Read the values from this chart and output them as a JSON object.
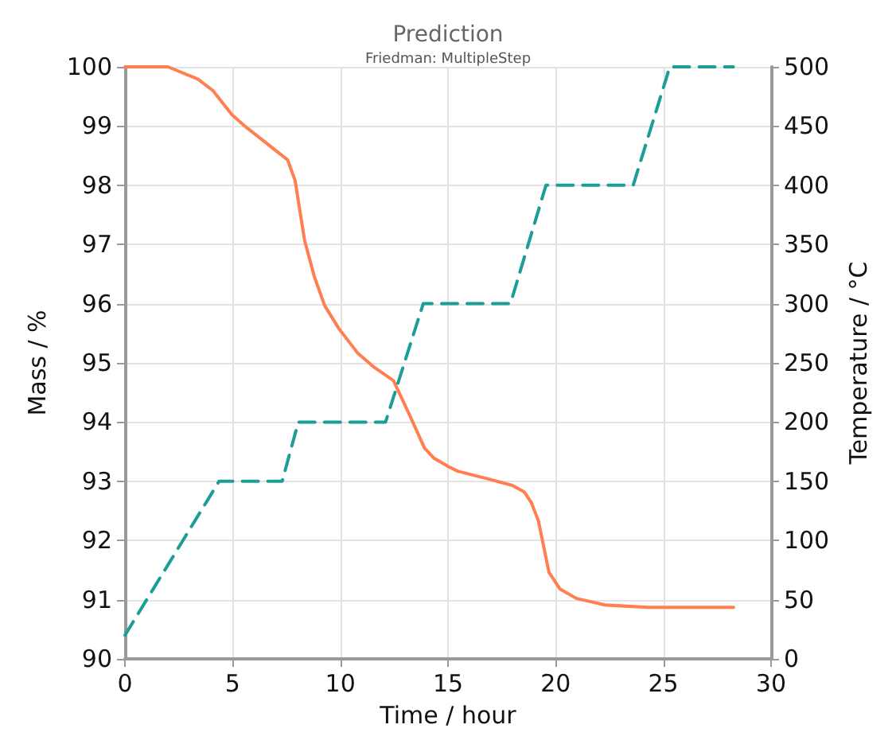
{
  "chart_data": {
    "type": "line",
    "title": "Prediction",
    "subtitle": "Friedman: MultipleStep",
    "xlabel": "Time / hour",
    "ylabel": "Mass / %",
    "y2label": "Temperature / °C",
    "xlim": [
      0,
      30
    ],
    "xticks": [
      0,
      5,
      10,
      15,
      20,
      25,
      30
    ],
    "ylim": [
      90,
      100
    ],
    "yticks": [
      90,
      91,
      92,
      93,
      94,
      95,
      96,
      97,
      98,
      99,
      100
    ],
    "y2lim": [
      0,
      500
    ],
    "y2ticks": [
      0,
      50,
      100,
      150,
      200,
      250,
      300,
      350,
      400,
      450,
      500
    ],
    "grid": true,
    "marker": "none",
    "series": [
      {
        "color": "#ff7f50",
        "line_style": "solid",
        "x": [
          0,
          2,
          3.4,
          4.08,
          4.97,
          5.63,
          7.55,
          7.9,
          8.34,
          8.79,
          9.27,
          9.93,
          10.82,
          11.59,
          12.47,
          13.25,
          13.91,
          14.35,
          15.01,
          15.45,
          16.76,
          17.99,
          18.54,
          18.87,
          19.2,
          19.69,
          20.2,
          20.97,
          22.3,
          24.28,
          28.26
        ],
        "values": [
          100,
          100,
          99.79,
          99.6,
          99.19,
          98.98,
          98.43,
          98.08,
          97.07,
          96.46,
          95.97,
          95.58,
          95.16,
          94.92,
          94.7,
          94.09,
          93.56,
          93.39,
          93.25,
          93.17,
          93.05,
          92.93,
          92.82,
          92.64,
          92.33,
          91.46,
          91.18,
          91.02,
          90.91,
          90.87,
          90.87
        ]
      },
      {
        "color": "#1a9e96",
        "line_style": "dashed",
        "axis": "y2",
        "x": [
          0,
          4.37,
          7.3,
          8.05,
          12.1,
          13.85,
          17.9,
          19.55,
          23.6,
          25.3,
          28.25
        ],
        "values": [
          20,
          150,
          150,
          200,
          200,
          300,
          300,
          400,
          400,
          500,
          500
        ]
      }
    ]
  }
}
